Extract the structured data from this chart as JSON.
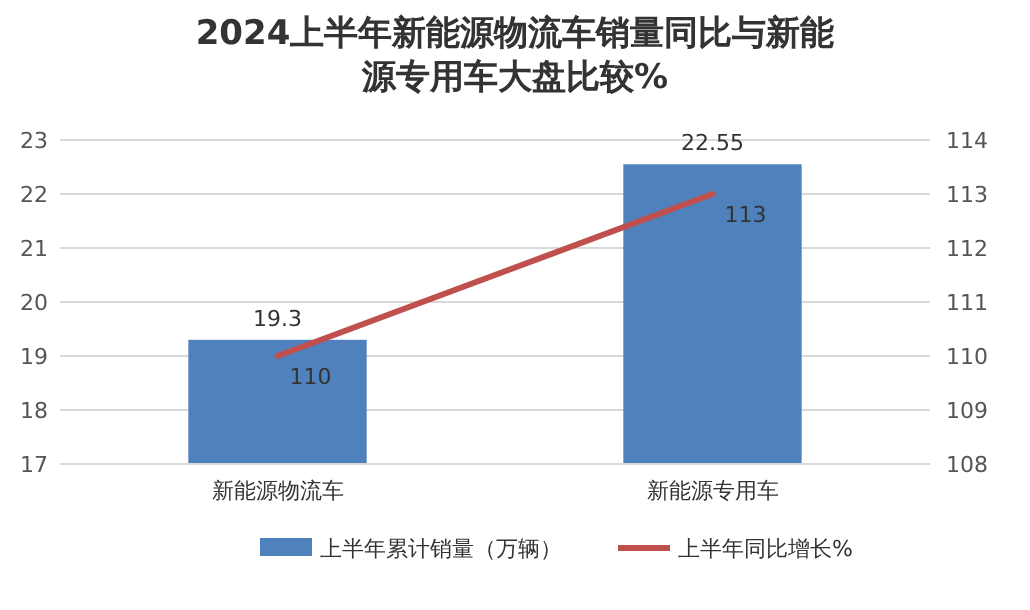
{
  "chart_data": {
    "type": "bar",
    "title": "2024上半年新能源物流车销量同比与新能源专用车大盘比较%",
    "categories": [
      "新能源物流车",
      "新能源专用车"
    ],
    "series": [
      {
        "name": "上半年累计销量（万辆）",
        "color": "#4f81bd",
        "values": [
          19.3,
          22.55
        ]
      },
      {
        "name": "上半年同比增长%",
        "color": "#c0504d",
        "values": [
          110,
          113
        ],
        "type": "line",
        "axis": "y2"
      }
    ],
    "ylim": [
      17,
      23
    ],
    "yticks": [
      17,
      18,
      19,
      20,
      21,
      22,
      23
    ],
    "y2lim": [
      108,
      114
    ],
    "y2ticks": [
      108,
      109,
      110,
      111,
      112,
      113,
      114
    ],
    "data_labels": true,
    "legend": "bottom",
    "grid": "y"
  }
}
